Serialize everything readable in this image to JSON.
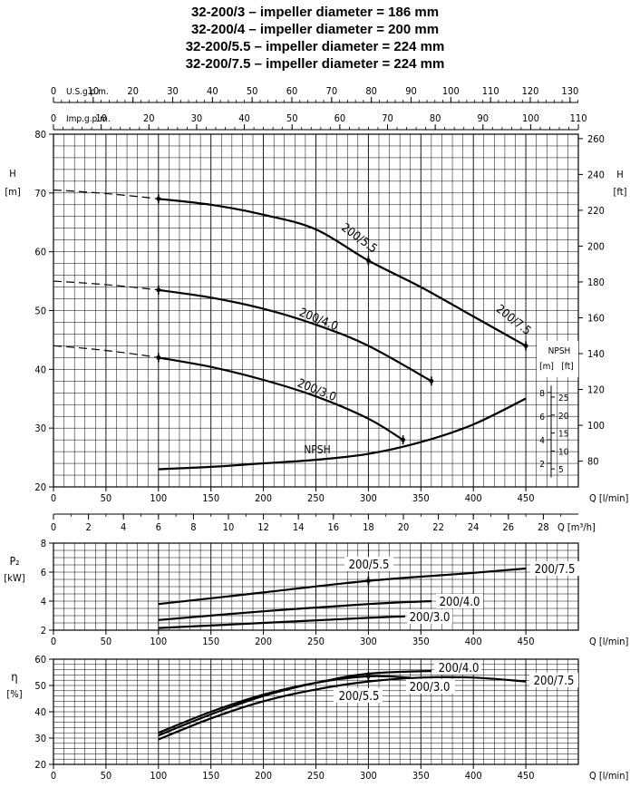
{
  "titles": [
    "32-200/3 – impeller diameter = 186 mm",
    "32-200/4 – impeller diameter = 200 mm",
    "32-200/5.5 – impeller diameter = 224 mm",
    "32-200/7.5 – impeller diameter = 224 mm"
  ],
  "chart_data": [
    {
      "id": "head",
      "type": "line",
      "x_axis_label": "Q [l/min]",
      "x_ticks": [
        0,
        50,
        100,
        150,
        200,
        250,
        300,
        350,
        400,
        450
      ],
      "xlim": [
        0,
        500
      ],
      "top_axes": [
        {
          "label": "U.S.g.p.m.",
          "ticks": [
            0,
            10,
            20,
            30,
            40,
            50,
            60,
            70,
            80,
            90,
            100,
            110,
            120,
            130
          ]
        },
        {
          "label": "Imp.g.p.m.",
          "ticks": [
            0,
            10,
            20,
            30,
            40,
            50,
            60,
            70,
            80,
            90,
            100,
            110
          ]
        }
      ],
      "ylabel_left": "H",
      "yunit_left": "[m]",
      "ylim": [
        20,
        80
      ],
      "y_ticks": [
        20,
        30,
        40,
        50,
        60,
        70,
        80
      ],
      "ylabel_right": "H",
      "yunit_right": "[ft]",
      "y_ticks_right": [
        80,
        100,
        120,
        140,
        160,
        180,
        200,
        220,
        240,
        260
      ],
      "grid": true,
      "series": [
        {
          "name": "200/3.0",
          "x": [
            0,
            100,
            150,
            200,
            250,
            300,
            333
          ],
          "y": [
            44,
            42,
            40.4,
            38.2,
            35.4,
            31.6,
            28
          ]
        },
        {
          "name": "200/4.0",
          "x": [
            0,
            100,
            150,
            200,
            250,
            300,
            360
          ],
          "y": [
            55,
            53.5,
            52.2,
            50.3,
            47.6,
            44,
            38
          ]
        },
        {
          "name": "200/5.5",
          "x": [
            0,
            100,
            150,
            200,
            250,
            300,
            350,
            400,
            450
          ],
          "y": [
            70.5,
            69,
            68,
            66.3,
            63.8,
            58.5,
            54,
            49,
            44
          ]
        }
      ],
      "series_labels": [
        "200/3.0",
        "200/4.0",
        "200/5.5",
        "200/7.5"
      ],
      "npsh": {
        "label": "NPSH",
        "axis_title": "NPSH",
        "unit_m": "[m]",
        "unit_ft": "[ft]",
        "ticks_m": [
          2,
          4,
          6,
          8
        ],
        "ticks_ft": [
          5,
          10,
          15,
          20,
          25
        ],
        "x": [
          100,
          150,
          200,
          250,
          300,
          350,
          400,
          450
        ],
        "y": [
          1.5,
          1.7,
          2.0,
          2.3,
          2.8,
          3.8,
          5.3,
          7.5
        ]
      }
    },
    {
      "id": "flow",
      "type": "line",
      "axis_label": "Q [m³/h]",
      "ticks": [
        0,
        2,
        4,
        6,
        8,
        10,
        12,
        14,
        16,
        18,
        20,
        22,
        24,
        26,
        28
      ]
    },
    {
      "id": "power",
      "type": "line",
      "ylabel": "P₂",
      "yunit": "[kW]",
      "ylim": [
        2,
        8
      ],
      "y_ticks": [
        2,
        4,
        6,
        8
      ],
      "x_axis_label": "Q [l/min]",
      "x_ticks": [
        0,
        50,
        100,
        150,
        200,
        250,
        300,
        350,
        400,
        450
      ],
      "grid": true,
      "series": [
        {
          "name": "200/3.0",
          "x": [
            100,
            200,
            300,
            335
          ],
          "y": [
            2.15,
            2.5,
            2.85,
            2.95
          ]
        },
        {
          "name": "200/4.0",
          "x": [
            100,
            200,
            300,
            360
          ],
          "y": [
            2.7,
            3.3,
            3.8,
            4.0
          ]
        },
        {
          "name": "200/5.5",
          "x": [
            100,
            200,
            300,
            400,
            450
          ],
          "y": [
            3.8,
            4.6,
            5.4,
            5.95,
            6.25
          ]
        }
      ],
      "series_labels": [
        "200/3.0",
        "200/4.0",
        "200/5.5",
        "200/7.5"
      ]
    },
    {
      "id": "efficiency",
      "type": "line",
      "ylabel": "η",
      "yunit": "[%]",
      "ylim": [
        20,
        60
      ],
      "y_ticks": [
        20,
        30,
        40,
        50,
        60
      ],
      "x_axis_label": "Q [l/min]",
      "x_ticks": [
        0,
        50,
        100,
        150,
        200,
        250,
        300,
        350,
        400,
        450
      ],
      "grid": true,
      "series": [
        {
          "name": "200/3.0",
          "x": [
            100,
            150,
            200,
            250,
            300,
            340
          ],
          "y": [
            32,
            40,
            46.5,
            51,
            53.5,
            53
          ]
        },
        {
          "name": "200/4.0",
          "x": [
            100,
            150,
            200,
            250,
            300,
            360
          ],
          "y": [
            31,
            39,
            46,
            51,
            54.5,
            55.5
          ]
        },
        {
          "name": "200/5.5",
          "x": [
            100,
            150,
            200,
            250,
            300,
            350,
            400,
            450
          ],
          "y": [
            29.5,
            37.5,
            44,
            48.5,
            51.5,
            53,
            53,
            51.5
          ]
        }
      ],
      "series_labels": [
        "200/4.0",
        "200/3.0",
        "200/5.5",
        "200/7.5"
      ]
    }
  ]
}
